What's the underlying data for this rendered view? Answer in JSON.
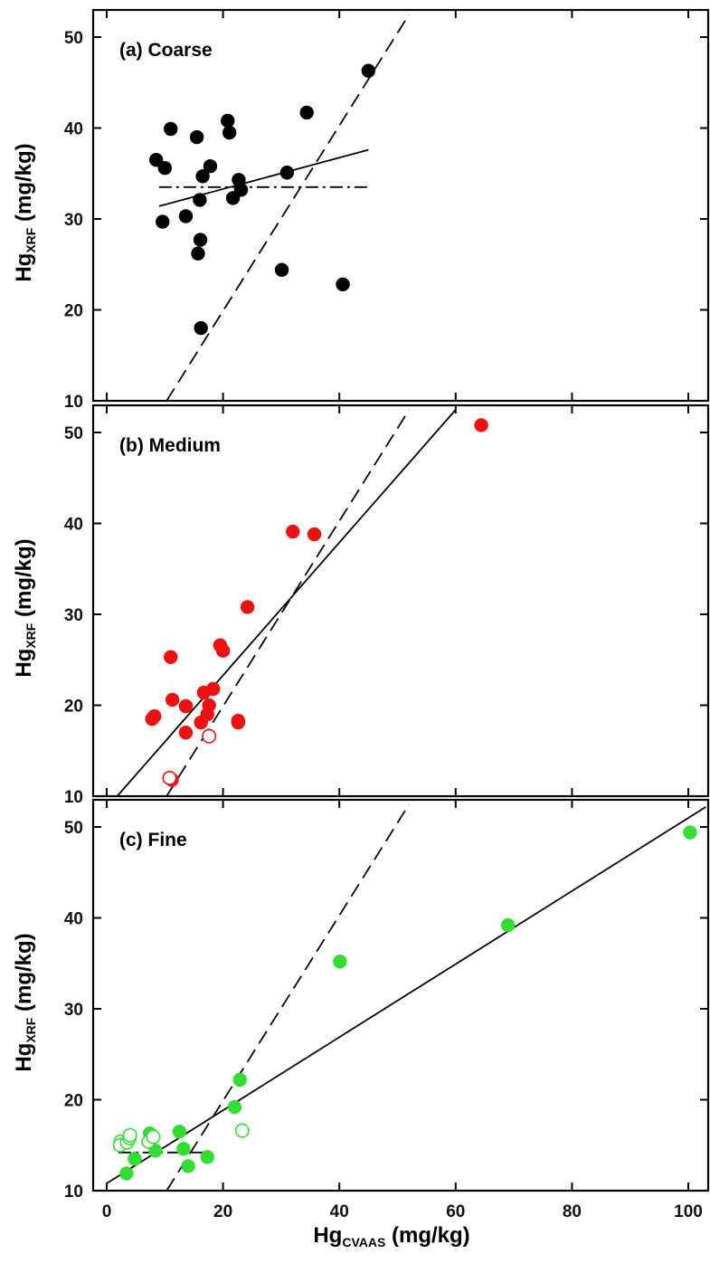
{
  "chart_data": [
    {
      "type": "scatter",
      "title": "(a) Coarse",
      "ylabel": {
        "main": "Hg",
        "sub": "XRF",
        "unit": " (mg/kg)"
      },
      "xlim": [
        0,
        105
      ],
      "ylim": [
        10,
        53
      ],
      "yticks": [
        10,
        20,
        30,
        40,
        50
      ],
      "colors": {
        "marker": "#000000"
      },
      "series": [
        {
          "marker": "filled",
          "points": [
            [
              8.5,
              36.5
            ],
            [
              10,
              35.6
            ],
            [
              11,
              39.9
            ],
            [
              9.6,
              29.7
            ],
            [
              13.6,
              30.3
            ],
            [
              15.5,
              39.0
            ],
            [
              16.5,
              34.7
            ],
            [
              17.8,
              35.8
            ],
            [
              16,
              32.1
            ],
            [
              16.1,
              27.7
            ],
            [
              15.7,
              26.2
            ],
            [
              16.2,
              18.0
            ],
            [
              20.8,
              40.8
            ],
            [
              21.1,
              39.5
            ],
            [
              21.7,
              32.3
            ],
            [
              22.7,
              34.3
            ],
            [
              23.1,
              33.2
            ],
            [
              30.1,
              24.4
            ],
            [
              31,
              35.1
            ],
            [
              34.4,
              41.7
            ],
            [
              40.6,
              22.8
            ],
            [
              45,
              46.3
            ]
          ]
        }
      ],
      "lines": [
        {
          "style": "solid",
          "from": [
            9,
            31.4
          ],
          "to": [
            45,
            37.6
          ]
        },
        {
          "style": "dashdot",
          "from": [
            9,
            33.5
          ],
          "to": [
            45,
            33.5
          ]
        },
        {
          "style": "dashed",
          "from": [
            10.3,
            10
          ],
          "to": [
            52,
            52.5
          ]
        }
      ]
    },
    {
      "type": "scatter",
      "title": "(b) Medium",
      "ylabel": {
        "main": "Hg",
        "sub": "XRF",
        "unit": " (mg/kg)"
      },
      "xlim": [
        0,
        105
      ],
      "ylim": [
        10,
        53
      ],
      "yticks": [
        10,
        20,
        30,
        40,
        50
      ],
      "colors": {
        "marker": "#ee1111"
      },
      "series": [
        {
          "marker": "filled",
          "points": [
            [
              7.8,
              18.5
            ],
            [
              8.2,
              18.8
            ],
            [
              11,
              25.3
            ],
            [
              11.3,
              20.6
            ],
            [
              11.2,
              11.8
            ],
            [
              13.6,
              19.9
            ],
            [
              13.6,
              17.0
            ],
            [
              16.2,
              18.1
            ],
            [
              16.7,
              21.4
            ],
            [
              17.3,
              19.0
            ],
            [
              17.6,
              20.0
            ],
            [
              18.3,
              21.8
            ],
            [
              19.5,
              26.6
            ],
            [
              20,
              26.0
            ],
            [
              22.6,
              18.3
            ],
            [
              22.6,
              18.1
            ],
            [
              24.2,
              30.8
            ],
            [
              32,
              39.1
            ],
            [
              35.7,
              38.8
            ],
            [
              64.4,
              50.8
            ]
          ]
        },
        {
          "marker": "open",
          "points": [
            [
              17.6,
              16.6
            ],
            [
              10.8,
              12.0
            ]
          ]
        }
      ],
      "lines": [
        {
          "style": "solid",
          "from": [
            1.8,
            10
          ],
          "to": [
            60,
            52.5
          ]
        },
        {
          "style": "dashed",
          "from": [
            10.3,
            10
          ],
          "to": [
            52,
            52.5
          ]
        }
      ]
    },
    {
      "type": "scatter",
      "title": "(c) Fine",
      "ylabel": {
        "main": "Hg",
        "sub": "XRF",
        "unit": " (mg/kg)"
      },
      "xlabel": {
        "main": "Hg",
        "sub": "CVAAS",
        "unit": " (mg/kg)"
      },
      "xlim": [
        0,
        105
      ],
      "ylim": [
        10,
        53
      ],
      "xticks": [
        0,
        20,
        40,
        60,
        80,
        100
      ],
      "yticks": [
        10,
        20,
        30,
        40,
        50
      ],
      "colors": {
        "marker": "#33dd33"
      },
      "series": [
        {
          "marker": "filled",
          "points": [
            [
              3.4,
              11.9
            ],
            [
              4.8,
              13.5
            ],
            [
              7.4,
              16.3
            ],
            [
              8.4,
              14.4
            ],
            [
              12.5,
              16.5
            ],
            [
              13.2,
              14.6
            ],
            [
              14,
              12.7
            ],
            [
              17.3,
              13.7
            ],
            [
              22,
              19.2
            ],
            [
              22.9,
              22.2
            ],
            [
              40.1,
              35.2
            ],
            [
              69,
              39.2
            ],
            [
              100.3,
              49.4
            ]
          ]
        },
        {
          "marker": "open",
          "points": [
            [
              2.4,
              15.4
            ],
            [
              2.3,
              15.0
            ],
            [
              3.5,
              15.3
            ],
            [
              3.9,
              15.8
            ],
            [
              4,
              16.1
            ],
            [
              7.2,
              15.4
            ],
            [
              8,
              15.9
            ],
            [
              23.3,
              16.6
            ]
          ]
        }
      ],
      "lines": [
        {
          "style": "solid",
          "from": [
            0,
            10.8
          ],
          "to": [
            103,
            52.2
          ]
        },
        {
          "style": "dashed",
          "from": [
            10.3,
            10
          ],
          "to": [
            52,
            52.5
          ]
        },
        {
          "style": "dashdot",
          "from": [
            2,
            14.2
          ],
          "to": [
            18,
            14.2
          ]
        }
      ]
    }
  ]
}
